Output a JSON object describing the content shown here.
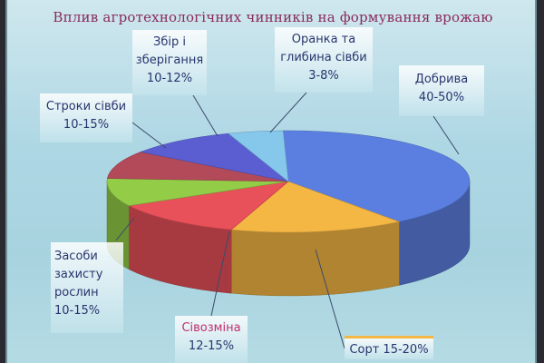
{
  "chart_data": {
    "type": "pie",
    "title": "Вплив агротехнологічних чинників на формування врожаю",
    "slices": [
      {
        "label": "Добрива",
        "range": "40-50%",
        "value": 45,
        "color": "#5b7fe0"
      },
      {
        "label": "Сорт",
        "range": "15-20%",
        "value": 17.5,
        "color": "#f5b744"
      },
      {
        "label": "Сівозміна",
        "range": "12-15%",
        "value": 13.5,
        "color": "#e8505a"
      },
      {
        "label": "Засоби захисту рослин",
        "range": "10-15%",
        "value": 10,
        "color": "#93cc47"
      },
      {
        "label": "Строки сівби",
        "range": "10-15%",
        "value": 10,
        "color": "#b34a5a"
      },
      {
        "label": "Збір і зберігання",
        "range": "10-12%",
        "value": 11,
        "color": "#5b5ed1"
      },
      {
        "label": "Оранка та глибина сівби",
        "range": "3-8%",
        "value": 5.5,
        "color": "#86c8ec"
      }
    ],
    "annotations": {
      "dobryva": [
        "Добрива",
        "40-50%"
      ],
      "sort": [
        "Сорт 15-20%"
      ],
      "sivozmina": [
        "Сівозміна",
        "12-15%"
      ],
      "zasoby": [
        "Засоби",
        "захисту",
        "рослин",
        "10-15%"
      ],
      "stroky": [
        "Строки сівби",
        "10-15%"
      ],
      "zbir": [
        "Збір і",
        "зберігання",
        "10-12%"
      ],
      "oranka": [
        "Оранка та",
        "глибина сівби",
        "3-8%"
      ]
    }
  }
}
